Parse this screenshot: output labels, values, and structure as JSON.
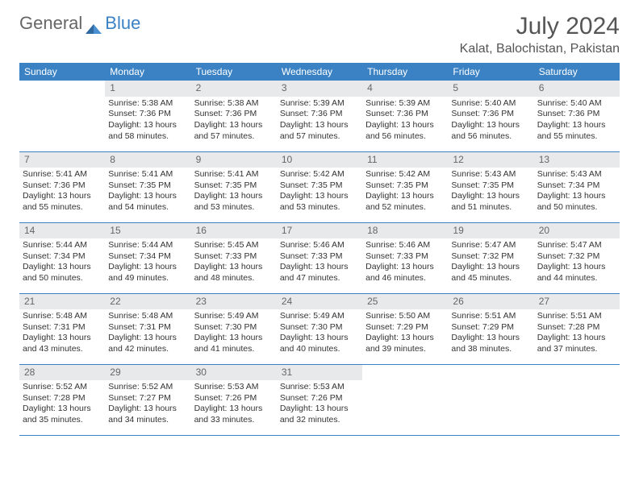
{
  "brand": {
    "part1": "General",
    "part2": "Blue"
  },
  "title": "July 2024",
  "location": "Kalat, Balochistan, Pakistan",
  "colors": {
    "header_bg": "#3b82c4",
    "header_text": "#ffffff",
    "daynum_bg": "#e8e9ea",
    "daynum_text": "#666666",
    "body_text": "#333333",
    "rule": "#3b82c4"
  },
  "weekdays": [
    "Sunday",
    "Monday",
    "Tuesday",
    "Wednesday",
    "Thursday",
    "Friday",
    "Saturday"
  ],
  "first_weekday_index": 1,
  "days": [
    {
      "n": 1,
      "sunrise": "5:38 AM",
      "sunset": "7:36 PM",
      "daylight": "13 hours and 58 minutes."
    },
    {
      "n": 2,
      "sunrise": "5:38 AM",
      "sunset": "7:36 PM",
      "daylight": "13 hours and 57 minutes."
    },
    {
      "n": 3,
      "sunrise": "5:39 AM",
      "sunset": "7:36 PM",
      "daylight": "13 hours and 57 minutes."
    },
    {
      "n": 4,
      "sunrise": "5:39 AM",
      "sunset": "7:36 PM",
      "daylight": "13 hours and 56 minutes."
    },
    {
      "n": 5,
      "sunrise": "5:40 AM",
      "sunset": "7:36 PM",
      "daylight": "13 hours and 56 minutes."
    },
    {
      "n": 6,
      "sunrise": "5:40 AM",
      "sunset": "7:36 PM",
      "daylight": "13 hours and 55 minutes."
    },
    {
      "n": 7,
      "sunrise": "5:41 AM",
      "sunset": "7:36 PM",
      "daylight": "13 hours and 55 minutes."
    },
    {
      "n": 8,
      "sunrise": "5:41 AM",
      "sunset": "7:35 PM",
      "daylight": "13 hours and 54 minutes."
    },
    {
      "n": 9,
      "sunrise": "5:41 AM",
      "sunset": "7:35 PM",
      "daylight": "13 hours and 53 minutes."
    },
    {
      "n": 10,
      "sunrise": "5:42 AM",
      "sunset": "7:35 PM",
      "daylight": "13 hours and 53 minutes."
    },
    {
      "n": 11,
      "sunrise": "5:42 AM",
      "sunset": "7:35 PM",
      "daylight": "13 hours and 52 minutes."
    },
    {
      "n": 12,
      "sunrise": "5:43 AM",
      "sunset": "7:35 PM",
      "daylight": "13 hours and 51 minutes."
    },
    {
      "n": 13,
      "sunrise": "5:43 AM",
      "sunset": "7:34 PM",
      "daylight": "13 hours and 50 minutes."
    },
    {
      "n": 14,
      "sunrise": "5:44 AM",
      "sunset": "7:34 PM",
      "daylight": "13 hours and 50 minutes."
    },
    {
      "n": 15,
      "sunrise": "5:44 AM",
      "sunset": "7:34 PM",
      "daylight": "13 hours and 49 minutes."
    },
    {
      "n": 16,
      "sunrise": "5:45 AM",
      "sunset": "7:33 PM",
      "daylight": "13 hours and 48 minutes."
    },
    {
      "n": 17,
      "sunrise": "5:46 AM",
      "sunset": "7:33 PM",
      "daylight": "13 hours and 47 minutes."
    },
    {
      "n": 18,
      "sunrise": "5:46 AM",
      "sunset": "7:33 PM",
      "daylight": "13 hours and 46 minutes."
    },
    {
      "n": 19,
      "sunrise": "5:47 AM",
      "sunset": "7:32 PM",
      "daylight": "13 hours and 45 minutes."
    },
    {
      "n": 20,
      "sunrise": "5:47 AM",
      "sunset": "7:32 PM",
      "daylight": "13 hours and 44 minutes."
    },
    {
      "n": 21,
      "sunrise": "5:48 AM",
      "sunset": "7:31 PM",
      "daylight": "13 hours and 43 minutes."
    },
    {
      "n": 22,
      "sunrise": "5:48 AM",
      "sunset": "7:31 PM",
      "daylight": "13 hours and 42 minutes."
    },
    {
      "n": 23,
      "sunrise": "5:49 AM",
      "sunset": "7:30 PM",
      "daylight": "13 hours and 41 minutes."
    },
    {
      "n": 24,
      "sunrise": "5:49 AM",
      "sunset": "7:30 PM",
      "daylight": "13 hours and 40 minutes."
    },
    {
      "n": 25,
      "sunrise": "5:50 AM",
      "sunset": "7:29 PM",
      "daylight": "13 hours and 39 minutes."
    },
    {
      "n": 26,
      "sunrise": "5:51 AM",
      "sunset": "7:29 PM",
      "daylight": "13 hours and 38 minutes."
    },
    {
      "n": 27,
      "sunrise": "5:51 AM",
      "sunset": "7:28 PM",
      "daylight": "13 hours and 37 minutes."
    },
    {
      "n": 28,
      "sunrise": "5:52 AM",
      "sunset": "7:28 PM",
      "daylight": "13 hours and 35 minutes."
    },
    {
      "n": 29,
      "sunrise": "5:52 AM",
      "sunset": "7:27 PM",
      "daylight": "13 hours and 34 minutes."
    },
    {
      "n": 30,
      "sunrise": "5:53 AM",
      "sunset": "7:26 PM",
      "daylight": "13 hours and 33 minutes."
    },
    {
      "n": 31,
      "sunrise": "5:53 AM",
      "sunset": "7:26 PM",
      "daylight": "13 hours and 32 minutes."
    }
  ],
  "labels": {
    "sunrise": "Sunrise:",
    "sunset": "Sunset:",
    "daylight": "Daylight:"
  }
}
